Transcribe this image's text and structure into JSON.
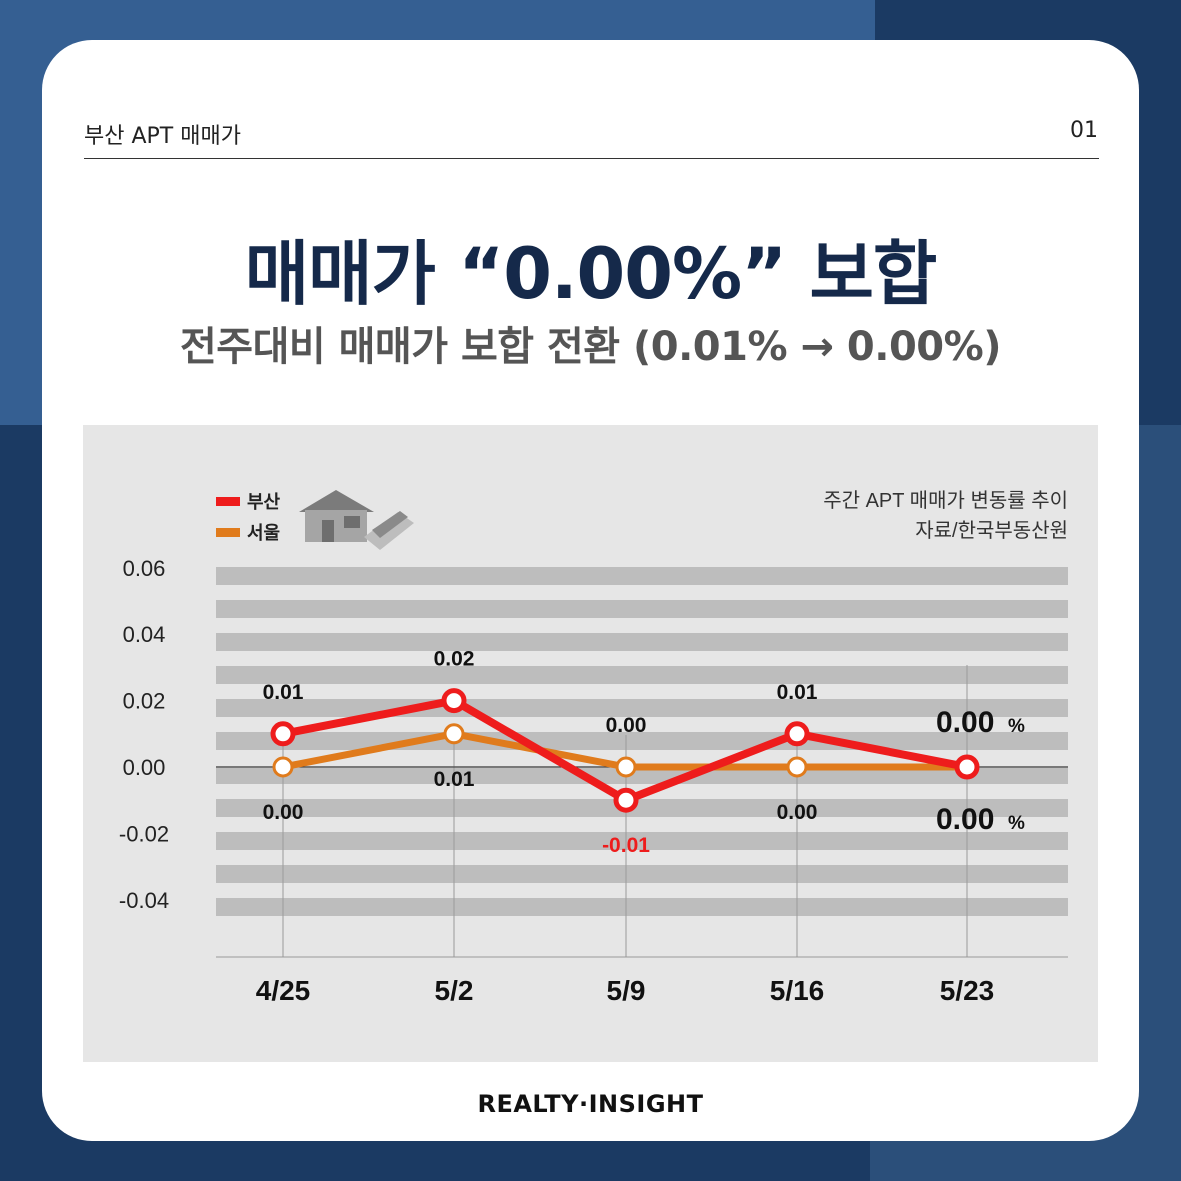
{
  "header": {
    "category": "부산 APT 매매가",
    "page_number": "01"
  },
  "title": "매매가 “0.00%” 보합",
  "subtitle": "전주대비 매매가 보합 전환 (0.01% → 0.00%)",
  "footer": {
    "brand": "REALTY·INSIGHT"
  },
  "colors": {
    "busan": "#ee1c1c",
    "seoul": "#e07b1c",
    "title": "#15294a",
    "band": "#bdbdbd",
    "panel": "#e6e6e6"
  },
  "icons": {
    "house": "house-icon"
  },
  "chart_data": {
    "type": "line",
    "title": "주간 APT 매매가 변동률 추이",
    "source": "자료/한국부동산원",
    "categories": [
      "4/25",
      "5/2",
      "5/9",
      "5/16",
      "5/23"
    ],
    "series": [
      {
        "name": "부산",
        "values": [
          0.01,
          0.02,
          -0.01,
          0.01,
          0.0
        ],
        "labels": [
          "0.01",
          "0.02",
          "-0.01",
          "0.01",
          "0.00"
        ]
      },
      {
        "name": "서울",
        "values": [
          0.0,
          0.01,
          0.0,
          0.0,
          0.0
        ],
        "labels": [
          "0.00",
          "0.01",
          "0.00",
          "0.00",
          "0.00"
        ]
      }
    ],
    "yticks": [
      "0.06",
      "0.04",
      "0.02",
      "0.00",
      "-0.02",
      "-0.04"
    ],
    "ylim": [
      -0.04,
      0.06
    ],
    "last_value_unit": "%",
    "legend": "top-left",
    "grid": true
  }
}
